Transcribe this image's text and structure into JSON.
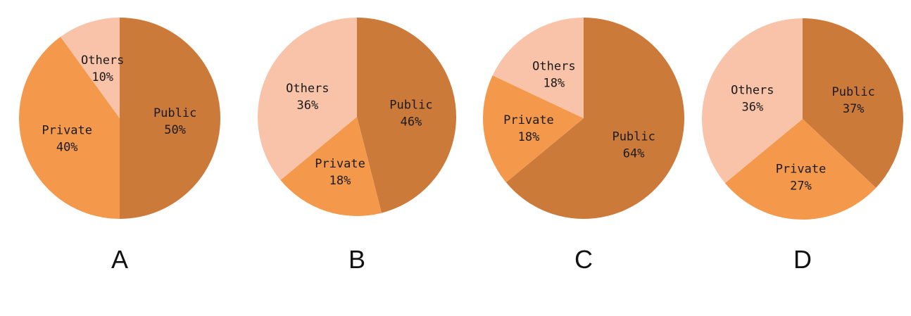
{
  "colors": {
    "Public": "#cc7a3a",
    "Private": "#f4994b",
    "Others": "#f8c3a8"
  },
  "chart_data": [
    {
      "type": "pie",
      "title": "A",
      "slices": [
        {
          "label": "Public",
          "value": 50,
          "text": "50%"
        },
        {
          "label": "Private",
          "value": 40,
          "text": "40%"
        },
        {
          "label": "Others",
          "value": 10,
          "text": "10%"
        }
      ]
    },
    {
      "type": "pie",
      "title": "B",
      "slices": [
        {
          "label": "Public",
          "value": 46,
          "text": "46%"
        },
        {
          "label": "Private",
          "value": 18,
          "text": "18%"
        },
        {
          "label": "Others",
          "value": 36,
          "text": "36%"
        }
      ]
    },
    {
      "type": "pie",
      "title": "C",
      "slices": [
        {
          "label": "Public",
          "value": 64,
          "text": "64%"
        },
        {
          "label": "Private",
          "value": 18,
          "text": "18%"
        },
        {
          "label": "Others",
          "value": 18,
          "text": "18%"
        }
      ]
    },
    {
      "type": "pie",
      "title": "D",
      "slices": [
        {
          "label": "Public",
          "value": 37,
          "text": "37%"
        },
        {
          "label": "Private",
          "value": 27,
          "text": "27%"
        },
        {
          "label": "Others",
          "value": 36,
          "text": "36%"
        }
      ]
    }
  ]
}
